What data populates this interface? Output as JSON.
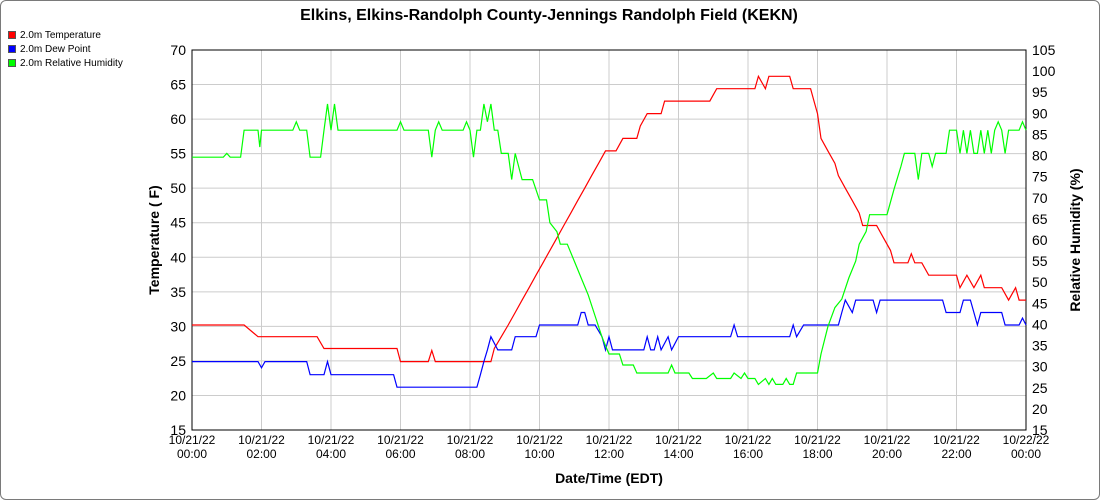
{
  "chart_data": {
    "type": "line",
    "title": "Elkins, Elkins-Randolph County-Jennings Randolph Field (KEKN)",
    "xlabel": "Date/Time (EDT)",
    "ylabel": "Temperature ( F)",
    "ylabel_right": "Relative Humidity (%)",
    "xlim": [
      0,
      24
    ],
    "ylim": [
      15,
      70
    ],
    "ylim_right": [
      15,
      105
    ],
    "x_ticks": [
      0,
      2,
      4,
      6,
      8,
      10,
      12,
      14,
      16,
      18,
      20,
      22,
      24
    ],
    "x_tick_labels": [
      [
        "10/21/22",
        "00:00"
      ],
      [
        "10/21/22",
        "02:00"
      ],
      [
        "10/21/22",
        "04:00"
      ],
      [
        "10/21/22",
        "06:00"
      ],
      [
        "10/21/22",
        "08:00"
      ],
      [
        "10/21/22",
        "10:00"
      ],
      [
        "10/21/22",
        "12:00"
      ],
      [
        "10/21/22",
        "14:00"
      ],
      [
        "10/21/22",
        "16:00"
      ],
      [
        "10/21/22",
        "18:00"
      ],
      [
        "10/21/22",
        "20:00"
      ],
      [
        "10/21/22",
        "22:00"
      ],
      [
        "10/22/22",
        "00:00"
      ]
    ],
    "y_ticks": [
      15,
      20,
      25,
      30,
      35,
      40,
      45,
      50,
      55,
      60,
      65,
      70
    ],
    "y_ticks_right": [
      15,
      20,
      25,
      30,
      35,
      40,
      45,
      50,
      55,
      60,
      65,
      70,
      75,
      80,
      85,
      90,
      95,
      100,
      105
    ],
    "grid": true,
    "legend_position": "top-left",
    "series": [
      {
        "name": "2.0m Temperature",
        "color": "#ff0000",
        "axis": "left",
        "points": [
          [
            0,
            30.2
          ],
          [
            1.5,
            30.2
          ],
          [
            1.9,
            28.5
          ],
          [
            3.6,
            28.5
          ],
          [
            3.8,
            26.8
          ],
          [
            5.9,
            26.8
          ],
          [
            6.0,
            24.9
          ],
          [
            6.8,
            24.9
          ],
          [
            6.9,
            26.5
          ],
          [
            7.0,
            24.9
          ],
          [
            8.6,
            24.9
          ],
          [
            8.7,
            26.8
          ],
          [
            8.9,
            28.5
          ],
          [
            9.1,
            30.2
          ],
          [
            9.3,
            32.0
          ],
          [
            9.5,
            33.8
          ],
          [
            9.7,
            35.6
          ],
          [
            9.9,
            37.4
          ],
          [
            10.1,
            39.2
          ],
          [
            10.3,
            41.0
          ],
          [
            10.5,
            42.8
          ],
          [
            10.7,
            44.6
          ],
          [
            10.9,
            46.4
          ],
          [
            11.1,
            48.2
          ],
          [
            11.3,
            50.0
          ],
          [
            11.5,
            51.8
          ],
          [
            11.7,
            53.6
          ],
          [
            11.9,
            55.4
          ],
          [
            12.2,
            55.4
          ],
          [
            12.4,
            57.2
          ],
          [
            12.8,
            57.2
          ],
          [
            12.9,
            59.0
          ],
          [
            13.1,
            60.8
          ],
          [
            13.5,
            60.8
          ],
          [
            13.6,
            62.6
          ],
          [
            14.9,
            62.6
          ],
          [
            15.1,
            64.4
          ],
          [
            16.2,
            64.4
          ],
          [
            16.3,
            66.2
          ],
          [
            16.5,
            64.4
          ],
          [
            16.6,
            66.2
          ],
          [
            17.2,
            66.2
          ],
          [
            17.3,
            64.4
          ],
          [
            17.8,
            64.4
          ],
          [
            17.9,
            62.6
          ],
          [
            18.0,
            60.8
          ],
          [
            18.1,
            57.2
          ],
          [
            18.3,
            55.4
          ],
          [
            18.5,
            53.6
          ],
          [
            18.6,
            51.8
          ],
          [
            18.8,
            50.0
          ],
          [
            19.0,
            48.2
          ],
          [
            19.2,
            46.4
          ],
          [
            19.3,
            44.6
          ],
          [
            19.7,
            44.6
          ],
          [
            19.9,
            42.8
          ],
          [
            20.1,
            41.0
          ],
          [
            20.2,
            39.2
          ],
          [
            20.6,
            39.2
          ],
          [
            20.7,
            40.5
          ],
          [
            20.8,
            39.2
          ],
          [
            21.0,
            39.2
          ],
          [
            21.2,
            37.4
          ],
          [
            22.0,
            37.4
          ],
          [
            22.1,
            35.6
          ],
          [
            22.3,
            37.4
          ],
          [
            22.5,
            35.6
          ],
          [
            22.7,
            37.4
          ],
          [
            22.8,
            35.6
          ],
          [
            23.3,
            35.6
          ],
          [
            23.5,
            33.8
          ],
          [
            23.7,
            35.6
          ],
          [
            23.8,
            33.8
          ],
          [
            24.0,
            33.8
          ]
        ]
      },
      {
        "name": "2.0m Dew Point",
        "color": "#0000ff",
        "axis": "left",
        "points": [
          [
            0,
            24.9
          ],
          [
            1.9,
            24.9
          ],
          [
            2.0,
            24.0
          ],
          [
            2.1,
            24.9
          ],
          [
            3.3,
            24.9
          ],
          [
            3.4,
            23.0
          ],
          [
            3.8,
            23.0
          ],
          [
            3.9,
            24.9
          ],
          [
            4.0,
            23.0
          ],
          [
            5.8,
            23.0
          ],
          [
            5.9,
            21.2
          ],
          [
            6.1,
            21.2
          ],
          [
            8.2,
            21.2
          ],
          [
            8.3,
            23.0
          ],
          [
            8.4,
            24.9
          ],
          [
            8.5,
            26.6
          ],
          [
            8.6,
            28.5
          ],
          [
            8.8,
            26.6
          ],
          [
            9.2,
            26.6
          ],
          [
            9.3,
            28.5
          ],
          [
            9.9,
            28.5
          ],
          [
            10.0,
            30.2
          ],
          [
            11.1,
            30.2
          ],
          [
            11.2,
            32.0
          ],
          [
            11.3,
            32.0
          ],
          [
            11.4,
            30.2
          ],
          [
            11.6,
            30.2
          ],
          [
            11.8,
            28.5
          ],
          [
            11.9,
            26.6
          ],
          [
            12.0,
            28.5
          ],
          [
            12.1,
            26.6
          ],
          [
            13.0,
            26.6
          ],
          [
            13.1,
            28.5
          ],
          [
            13.2,
            26.6
          ],
          [
            13.3,
            26.6
          ],
          [
            13.4,
            28.5
          ],
          [
            13.5,
            26.6
          ],
          [
            13.7,
            28.5
          ],
          [
            13.8,
            26.6
          ],
          [
            14.0,
            28.5
          ],
          [
            15.5,
            28.5
          ],
          [
            15.6,
            30.2
          ],
          [
            15.7,
            28.5
          ],
          [
            17.2,
            28.5
          ],
          [
            17.3,
            30.2
          ],
          [
            17.4,
            28.5
          ],
          [
            17.6,
            30.2
          ],
          [
            18.6,
            30.2
          ],
          [
            18.7,
            32.0
          ],
          [
            18.8,
            33.8
          ],
          [
            19.0,
            32.0
          ],
          [
            19.1,
            33.8
          ],
          [
            19.6,
            33.8
          ],
          [
            19.7,
            32.0
          ],
          [
            19.8,
            33.8
          ],
          [
            21.6,
            33.8
          ],
          [
            21.7,
            32.0
          ],
          [
            22.1,
            32.0
          ],
          [
            22.2,
            33.8
          ],
          [
            22.4,
            33.8
          ],
          [
            22.5,
            32.0
          ],
          [
            22.6,
            30.2
          ],
          [
            22.7,
            32.0
          ],
          [
            23.3,
            32.0
          ],
          [
            23.4,
            30.2
          ],
          [
            23.8,
            30.2
          ],
          [
            23.9,
            31.2
          ],
          [
            24.0,
            30.2
          ]
        ]
      },
      {
        "name": "2.0m Relative Humidity",
        "color": "#00ff00",
        "axis": "right",
        "points": [
          [
            0,
            79.6
          ],
          [
            0.9,
            79.6
          ],
          [
            1.0,
            80.5
          ],
          [
            1.1,
            79.6
          ],
          [
            1.4,
            79.6
          ],
          [
            1.5,
            86.0
          ],
          [
            1.9,
            86.0
          ],
          [
            1.95,
            82.0
          ],
          [
            2.0,
            86.0
          ],
          [
            2.9,
            86.0
          ],
          [
            3.0,
            88.0
          ],
          [
            3.1,
            86.0
          ],
          [
            3.3,
            86.0
          ],
          [
            3.4,
            79.6
          ],
          [
            3.7,
            79.6
          ],
          [
            3.8,
            86.0
          ],
          [
            3.9,
            92.2
          ],
          [
            4.0,
            86.0
          ],
          [
            4.1,
            92.2
          ],
          [
            4.2,
            86.0
          ],
          [
            5.9,
            86.0
          ],
          [
            6.0,
            88.0
          ],
          [
            6.1,
            86.0
          ],
          [
            6.8,
            86.0
          ],
          [
            6.9,
            79.6
          ],
          [
            7.0,
            86.0
          ],
          [
            7.1,
            88.0
          ],
          [
            7.2,
            86.0
          ],
          [
            7.8,
            86.0
          ],
          [
            7.9,
            88.0
          ],
          [
            8.0,
            86.0
          ],
          [
            8.1,
            79.6
          ],
          [
            8.2,
            86.0
          ],
          [
            8.3,
            86.0
          ],
          [
            8.4,
            92.2
          ],
          [
            8.5,
            88.0
          ],
          [
            8.6,
            92.2
          ],
          [
            8.7,
            86.0
          ],
          [
            8.8,
            86.0
          ],
          [
            8.9,
            80.5
          ],
          [
            9.1,
            80.5
          ],
          [
            9.2,
            74.3
          ],
          [
            9.3,
            80.5
          ],
          [
            9.5,
            74.3
          ],
          [
            9.8,
            74.3
          ],
          [
            10.0,
            69.5
          ],
          [
            10.2,
            69.5
          ],
          [
            10.3,
            64.1
          ],
          [
            10.5,
            62.0
          ],
          [
            10.6,
            59.0
          ],
          [
            10.8,
            59.0
          ],
          [
            11.0,
            55.0
          ],
          [
            11.2,
            51.0
          ],
          [
            11.4,
            47.0
          ],
          [
            11.6,
            42.0
          ],
          [
            11.8,
            37.0
          ],
          [
            12.0,
            33.0
          ],
          [
            12.3,
            33.0
          ],
          [
            12.4,
            30.4
          ],
          [
            12.7,
            30.4
          ],
          [
            12.8,
            28.5
          ],
          [
            13.7,
            28.5
          ],
          [
            13.8,
            30.4
          ],
          [
            13.9,
            28.5
          ],
          [
            14.2,
            28.5
          ],
          [
            14.3,
            28.5
          ],
          [
            14.4,
            27.2
          ],
          [
            14.8,
            27.2
          ],
          [
            15.0,
            28.5
          ],
          [
            15.1,
            27.2
          ],
          [
            15.5,
            27.2
          ],
          [
            15.6,
            28.5
          ],
          [
            15.8,
            27.2
          ],
          [
            15.9,
            28.5
          ],
          [
            16.0,
            27.2
          ],
          [
            16.2,
            27.2
          ],
          [
            16.3,
            25.8
          ],
          [
            16.5,
            27.2
          ],
          [
            16.6,
            25.8
          ],
          [
            16.7,
            27.2
          ],
          [
            16.8,
            25.8
          ],
          [
            17.0,
            25.8
          ],
          [
            17.1,
            27.2
          ],
          [
            17.2,
            25.8
          ],
          [
            17.3,
            25.8
          ],
          [
            17.4,
            28.5
          ],
          [
            18.0,
            28.5
          ],
          [
            18.1,
            33.0
          ],
          [
            18.3,
            39.5
          ],
          [
            18.5,
            44.0
          ],
          [
            18.7,
            46.0
          ],
          [
            18.9,
            51.0
          ],
          [
            19.1,
            55.0
          ],
          [
            19.2,
            59.0
          ],
          [
            19.4,
            62.0
          ],
          [
            19.5,
            66.0
          ],
          [
            20.0,
            66.0
          ],
          [
            20.2,
            72.0
          ],
          [
            20.4,
            77.4
          ],
          [
            20.5,
            80.5
          ],
          [
            20.8,
            80.5
          ],
          [
            20.9,
            74.3
          ],
          [
            21.0,
            80.5
          ],
          [
            21.2,
            80.5
          ],
          [
            21.3,
            77.4
          ],
          [
            21.4,
            80.5
          ],
          [
            21.7,
            80.5
          ],
          [
            21.8,
            86.0
          ],
          [
            22.0,
            86.0
          ],
          [
            22.1,
            80.5
          ],
          [
            22.2,
            86.0
          ],
          [
            22.3,
            80.5
          ],
          [
            22.4,
            86.0
          ],
          [
            22.5,
            80.5
          ],
          [
            22.6,
            80.5
          ],
          [
            22.7,
            86.0
          ],
          [
            22.8,
            80.5
          ],
          [
            22.9,
            86.0
          ],
          [
            23.0,
            80.5
          ],
          [
            23.1,
            86.0
          ],
          [
            23.2,
            88.0
          ],
          [
            23.3,
            86.0
          ],
          [
            23.4,
            80.5
          ],
          [
            23.5,
            86.0
          ],
          [
            23.8,
            86.0
          ],
          [
            23.9,
            88.0
          ],
          [
            24.0,
            86.0
          ]
        ]
      }
    ]
  },
  "colors": {
    "grid": "#cccccc",
    "axis": "#000000"
  }
}
